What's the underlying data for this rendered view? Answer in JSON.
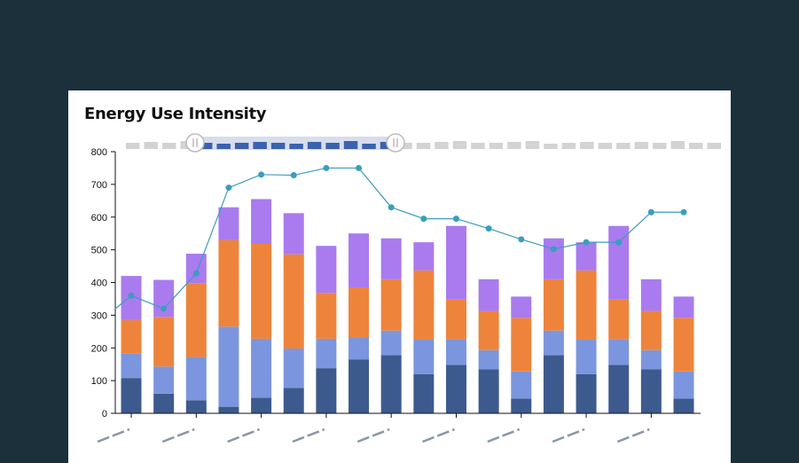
{
  "title": "Energy Use Intensity",
  "colors": {
    "background": "#1b303b",
    "seg1": "#3d5a8e",
    "seg2": "#7b96de",
    "seg3": "#ee843b",
    "seg4": "#a97bef",
    "line": "#3b9dbd",
    "brush_selected": "#3a62b0",
    "brush_unselected": "#d3d3d3"
  },
  "chart_data": {
    "type": "bar",
    "stacked": true,
    "title": "Energy Use Intensity",
    "ylim": [
      0,
      800
    ],
    "yticks": [
      "0",
      "100",
      "200",
      "300",
      "400",
      "500",
      "600",
      "700",
      "800"
    ],
    "x_tick_labels_obscured": true,
    "grid": false,
    "series": [
      {
        "values": [
          108,
          60,
          40,
          20,
          48,
          78,
          138,
          165,
          178,
          120,
          148,
          135,
          45,
          178,
          120,
          148,
          135,
          45
        ]
      },
      {
        "values": [
          74,
          83,
          132,
          245,
          180,
          120,
          90,
          67,
          75,
          105,
          79,
          58,
          83,
          75,
          105,
          79,
          58,
          83
        ]
      },
      {
        "values": [
          103,
          152,
          226,
          265,
          290,
          288,
          140,
          153,
          157,
          212,
          121,
          120,
          164,
          157,
          212,
          121,
          120,
          164
        ]
      },
      {
        "values": [
          135,
          113,
          90,
          100,
          137,
          126,
          144,
          165,
          125,
          86,
          225,
          97,
          65,
          125,
          86,
          225,
          97,
          65
        ]
      }
    ],
    "line": {
      "type": "line",
      "values": [
        360,
        320,
        428,
        690,
        730,
        728,
        750,
        750,
        630,
        595,
        595,
        565,
        532,
        502,
        523,
        523,
        615,
        615
      ]
    },
    "brush": {
      "selected_range_fraction": [
        0.12,
        0.45
      ]
    }
  }
}
